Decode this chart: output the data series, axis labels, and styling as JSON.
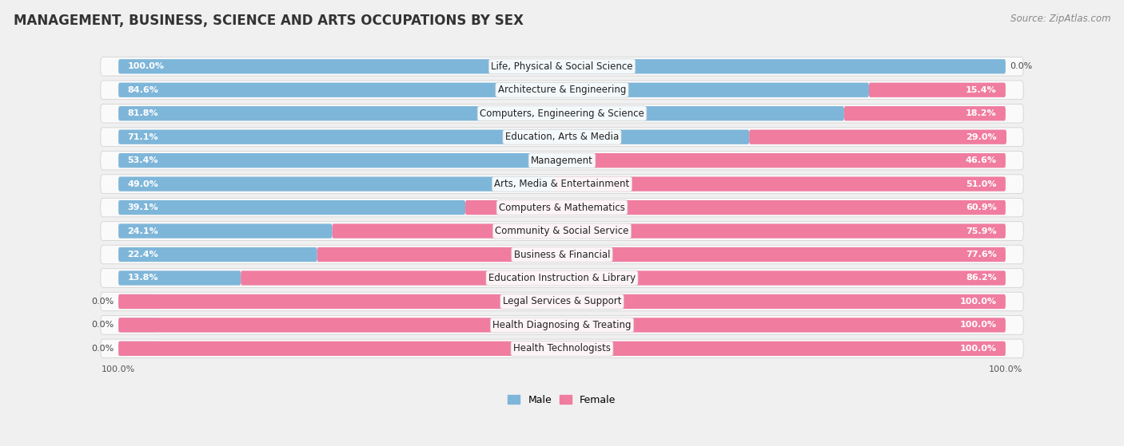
{
  "title": "MANAGEMENT, BUSINESS, SCIENCE AND ARTS OCCUPATIONS BY SEX",
  "source": "Source: ZipAtlas.com",
  "categories": [
    "Life, Physical & Social Science",
    "Architecture & Engineering",
    "Computers, Engineering & Science",
    "Education, Arts & Media",
    "Management",
    "Arts, Media & Entertainment",
    "Computers & Mathematics",
    "Community & Social Service",
    "Business & Financial",
    "Education Instruction & Library",
    "Legal Services & Support",
    "Health Diagnosing & Treating",
    "Health Technologists"
  ],
  "male_pct": [
    100.0,
    84.6,
    81.8,
    71.1,
    53.4,
    49.0,
    39.1,
    24.1,
    22.4,
    13.8,
    0.0,
    0.0,
    0.0
  ],
  "female_pct": [
    0.0,
    15.4,
    18.2,
    29.0,
    46.6,
    51.0,
    60.9,
    75.9,
    77.6,
    86.2,
    100.0,
    100.0,
    100.0
  ],
  "male_color": "#7EB6D9",
  "female_color": "#F07CA0",
  "bg_color": "#F0F0F0",
  "row_bg_color": "#FAFAFA",
  "title_fontsize": 12,
  "source_fontsize": 8.5,
  "label_fontsize": 8.5,
  "pct_fontsize": 8.0
}
